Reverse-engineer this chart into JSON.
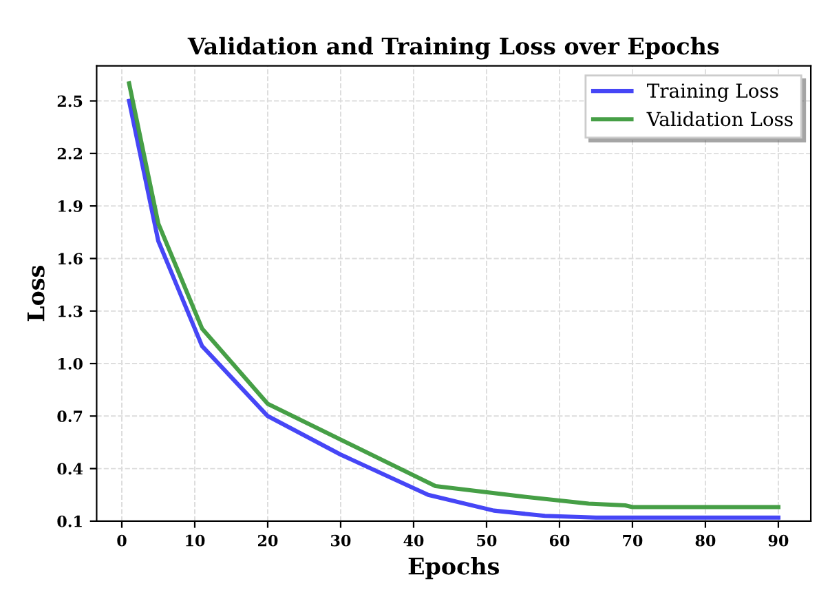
{
  "chart_data": {
    "type": "line",
    "title": "Validation and Training Loss over Epochs",
    "xlabel": "Epochs",
    "ylabel": "Loss",
    "series": [
      {
        "name": "Training Loss",
        "color": "#3c3cf5",
        "x": [
          1,
          5,
          11,
          20,
          30,
          42,
          51,
          58,
          65,
          90
        ],
        "values": [
          2.5,
          1.7,
          1.1,
          0.7,
          0.48,
          0.25,
          0.16,
          0.13,
          0.12,
          0.12
        ]
      },
      {
        "name": "Validation Loss",
        "color": "#3c9a3c",
        "x": [
          1,
          5,
          11,
          20,
          43,
          55,
          64,
          69,
          70,
          90
        ],
        "values": [
          2.6,
          1.8,
          1.2,
          0.77,
          0.3,
          0.24,
          0.2,
          0.19,
          0.18,
          0.18
        ]
      }
    ],
    "xlim": [
      -3.45,
      94.45
    ],
    "xticks": [
      0,
      10,
      20,
      30,
      40,
      50,
      60,
      70,
      80,
      90
    ],
    "ylim": [
      0.1,
      2.7
    ],
    "yticks": [
      0.1,
      0.4,
      0.7,
      {
        "value": 1,
        "label": "1.0"
      },
      1.3,
      1.6,
      1.9,
      2.2,
      2.5
    ],
    "grid": true,
    "legend": "top right",
    "line_style": "solid",
    "marker": "none"
  }
}
